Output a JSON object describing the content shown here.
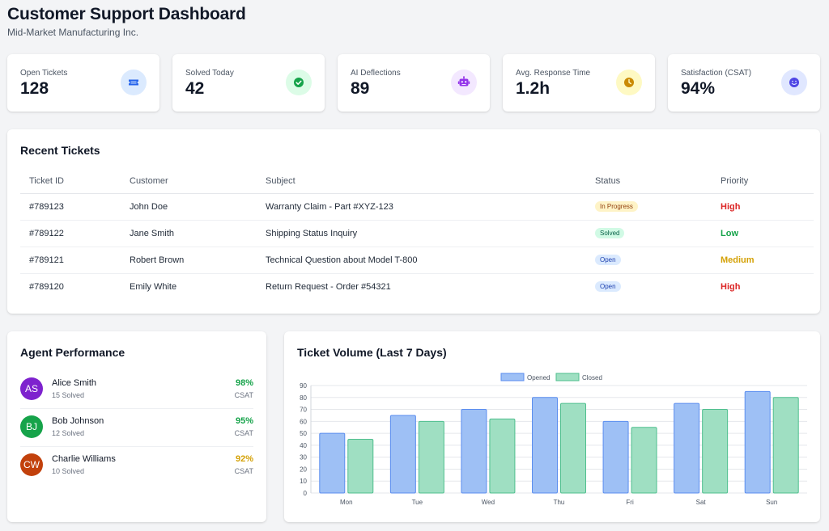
{
  "header": {
    "title": "Customer Support Dashboard",
    "subtitle": "Mid-Market Manufacturing Inc."
  },
  "stats": [
    {
      "label": "Open Tickets",
      "value": "128",
      "icon": "ticket-icon",
      "color": "#2563eb",
      "bg": "#dbeafe"
    },
    {
      "label": "Solved Today",
      "value": "42",
      "icon": "check-circle-icon",
      "color": "#16a34a",
      "bg": "#dcfce7"
    },
    {
      "label": "AI Deflections",
      "value": "89",
      "icon": "robot-icon",
      "color": "#9333ea",
      "bg": "#f3e8ff"
    },
    {
      "label": "Avg. Response Time",
      "value": "1.2h",
      "icon": "clock-icon",
      "color": "#ca8a04",
      "bg": "#fef9c3"
    },
    {
      "label": "Satisfaction (CSAT)",
      "value": "94%",
      "icon": "smile-icon",
      "color": "#4f46e5",
      "bg": "#e0e7ff"
    }
  ],
  "recent_tickets": {
    "title": "Recent Tickets",
    "columns": [
      "Ticket ID",
      "Customer",
      "Subject",
      "Status",
      "Priority"
    ],
    "rows": [
      {
        "id": "#789123",
        "customer": "John Doe",
        "subject": "Warranty Claim - Part #XYZ-123",
        "status": "In Progress",
        "priority": "High"
      },
      {
        "id": "#789122",
        "customer": "Jane Smith",
        "subject": "Shipping Status Inquiry",
        "status": "Solved",
        "priority": "Low"
      },
      {
        "id": "#789121",
        "customer": "Robert Brown",
        "subject": "Technical Question about Model T-800",
        "status": "Open",
        "priority": "Medium"
      },
      {
        "id": "#789120",
        "customer": "Emily White",
        "subject": "Return Request - Order #54321",
        "status": "Open",
        "priority": "High"
      }
    ]
  },
  "agent_performance": {
    "title": "Agent Performance",
    "agents": [
      {
        "initials": "AS",
        "name": "Alice Smith",
        "solved": "15 Solved",
        "csat": "98%",
        "csat_label": "CSAT",
        "avatar_color": "#7e22ce",
        "csat_color": "#16a34a"
      },
      {
        "initials": "BJ",
        "name": "Bob Johnson",
        "solved": "12 Solved",
        "csat": "95%",
        "csat_label": "CSAT",
        "avatar_color": "#16a34a",
        "csat_color": "#16a34a"
      },
      {
        "initials": "CW",
        "name": "Charlie Williams",
        "solved": "10 Solved",
        "csat": "92%",
        "csat_label": "CSAT",
        "avatar_color": "#c2410c",
        "csat_color": "#d4a106"
      }
    ]
  },
  "ticket_volume": {
    "title": "Ticket Volume (Last 7 Days)"
  },
  "chart_data": {
    "type": "bar",
    "title": "Ticket Volume (Last 7 Days)",
    "categories": [
      "Mon",
      "Tue",
      "Wed",
      "Thu",
      "Fri",
      "Sat",
      "Sun"
    ],
    "series": [
      {
        "name": "Opened",
        "values": [
          50,
          65,
          70,
          80,
          60,
          75,
          85
        ],
        "fill": "#9ec0f5",
        "stroke": "#5b8def"
      },
      {
        "name": "Closed",
        "values": [
          45,
          60,
          62,
          75,
          55,
          70,
          80
        ],
        "fill": "#9fdfc2",
        "stroke": "#4fbf8e"
      }
    ],
    "ylim": [
      0,
      90
    ],
    "yticks": [
      0,
      10,
      20,
      30,
      40,
      50,
      60,
      70,
      80,
      90
    ],
    "legend": "top-center",
    "grid": true
  }
}
